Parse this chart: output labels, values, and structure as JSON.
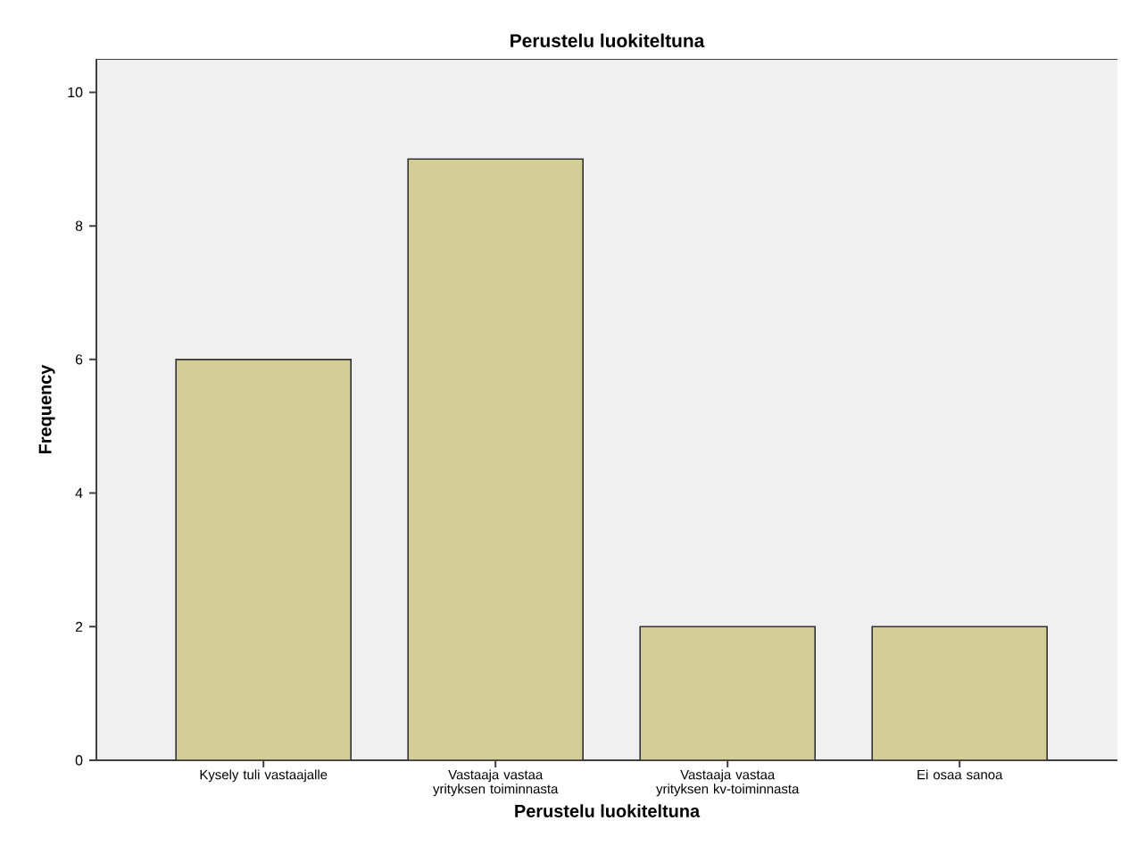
{
  "chart_data": {
    "type": "bar",
    "title": "Perustelu luokiteltuna",
    "xlabel": "Perustelu luokiteltuna",
    "ylabel": "Frequency",
    "categories": [
      "Kysely tuli vastaajalle",
      "Vastaaja vastaa yrityksen toiminnasta",
      "Vastaaja vastaa yrityksen kv-toiminnasta",
      "Ei osaa sanoa"
    ],
    "values": [
      6,
      9,
      2,
      2
    ],
    "color": "#d3cd98",
    "ylim": [
      0,
      10.5
    ],
    "yticks": [
      0,
      2,
      4,
      6,
      8,
      10
    ],
    "grid": false
  }
}
